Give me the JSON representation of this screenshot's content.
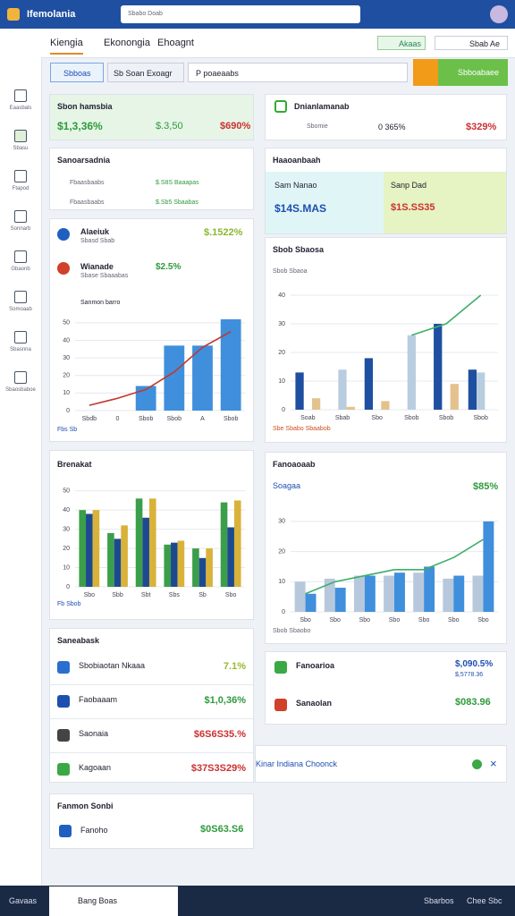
{
  "topbar": {
    "app": "Ifemolania",
    "search": "Sbabo Doab"
  },
  "sidebar": {
    "items": [
      "Eaasbals",
      "Sbasu",
      "Ftapod",
      "Sonnarb",
      "Gbaonb",
      "Somoaab",
      "Sbasnna",
      "Sbaosbaboe"
    ]
  },
  "tabs": [
    "Kiengia",
    "Ekonongia",
    "Ehoagnt"
  ],
  "actions": [
    "Akaas",
    "Sbab Ae"
  ],
  "filters": {
    "active": "Sbboas",
    "secondary": "Sb Soan Exoagr",
    "search": "P poaeaabs",
    "primary": "Sbboabaee"
  },
  "cards": {
    "summary": {
      "title": "Sbon hamsbia",
      "values": [
        "$1,3,36%",
        "$.3,50",
        "$690%"
      ]
    },
    "overview": {
      "title": "Dnianlamanab",
      "label": "Sbomie",
      "values": [
        "0 365%",
        "$329%"
      ]
    },
    "reports": {
      "title": "Sanoarsadnia",
      "rows": [
        [
          "Fbaasbaabs",
          "$.S8S Baaapas"
        ],
        [
          "Fbaasbaabs",
          "$.Sb5 Sbaabas"
        ]
      ]
    },
    "highlights": {
      "title": "Haaoanbaah",
      "left": {
        "label": "Sam Nanao",
        "value": "$14S.MAS"
      },
      "right": {
        "label": "Sanp Dad",
        "value": "$1S.SS35"
      }
    },
    "kpis": [
      {
        "label": "Alaeiuk",
        "sub": "Sbasd Sbab",
        "value": "$.1522%"
      },
      {
        "label": "Wianade",
        "sub": "Sbase Sbaaabas",
        "value": "$2.5%"
      }
    ],
    "lists": {
      "left": {
        "title": "Saneabask",
        "items": [
          [
            "Sbobiaotan Nkaaa",
            "7.1%"
          ],
          [
            "Faobaaam",
            "$1,0,36%"
          ],
          [
            "Saonaia",
            "$6S6S35.%"
          ],
          [
            "Kagoaan",
            "$37S3S29%"
          ]
        ]
      },
      "right": {
        "items": [
          [
            "Fanoarioa",
            "$,090.5%",
            "$,5778.36"
          ],
          [
            "Sanaolan",
            "$083.96"
          ]
        ]
      },
      "bottom": {
        "title": "Fanmon Sonbi",
        "item": "Fanoho",
        "value": "$0S63.S6"
      }
    },
    "toast": "Kinar Indiana Choonck"
  },
  "charts": [
    {
      "type": "bar",
      "title": "Sanmon barro",
      "footer": "Fbs Sb",
      "categories": [
        "Sbdb",
        "0",
        "Sbob",
        "Sbob",
        "A",
        "Sbob"
      ],
      "ylim": [
        0,
        55
      ],
      "yticks": [
        0,
        10,
        20,
        30,
        40,
        50
      ],
      "series": [
        {
          "color": "#3f8fdc",
          "values": [
            null,
            null,
            14,
            37,
            37,
            52
          ]
        },
        {
          "type": "line",
          "color": "#c0392b",
          "values": [
            3,
            7,
            12,
            22,
            36,
            45
          ]
        }
      ]
    },
    {
      "type": "bar",
      "title": "Sbob Sbaoa",
      "header": "Sbob Sbaosa",
      "footer": "Sbe Sbabo Sbaabob",
      "categories": [
        "Soab",
        "Sbab",
        "Sbo",
        "Sbob",
        "Sbob",
        "Sbob"
      ],
      "ylim": [
        0,
        40
      ],
      "yticks": [
        0,
        10,
        20,
        30,
        40
      ],
      "series": [
        {
          "color": "#1f4fa0",
          "values": [
            13,
            null,
            18,
            null,
            30,
            14
          ]
        },
        {
          "color": "#b9cde0",
          "values": [
            null,
            14,
            null,
            26,
            null,
            13
          ]
        },
        {
          "color": "#e3c28e",
          "values": [
            4,
            1,
            3,
            null,
            9,
            null
          ]
        },
        {
          "type": "line",
          "color": "#3fae6a",
          "values": [
            null,
            null,
            null,
            26,
            30,
            40
          ]
        }
      ]
    },
    {
      "type": "bar",
      "title": "Brenakat",
      "footer": "Fb Sbob",
      "categories": [
        "Sbo",
        "Sbb",
        "Sbt",
        "Sbs",
        "Sb",
        "Sbo"
      ],
      "ylim": [
        0,
        55
      ],
      "yticks": [
        0,
        10,
        20,
        30,
        40,
        50
      ],
      "series": [
        {
          "color": "#3b9e4a",
          "values": [
            40,
            28,
            46,
            22,
            20,
            44
          ]
        },
        {
          "color": "#1d4a8f",
          "values": [
            38,
            25,
            36,
            23,
            15,
            31
          ]
        },
        {
          "color": "#d9b23a",
          "values": [
            40,
            32,
            46,
            24,
            20,
            45
          ]
        }
      ]
    },
    {
      "type": "bar",
      "title": "Soagaa",
      "header": "Fanoaoaab",
      "badge": "$85%",
      "footer": "Sbob Sbaobo",
      "categories": [
        "Sbo",
        "Sbo",
        "Sbo",
        "Sbo",
        "Sbo",
        "Sbo",
        "Sbo"
      ],
      "ylim": [
        0,
        35
      ],
      "yticks": [
        0,
        10,
        20,
        30
      ],
      "series": [
        {
          "color": "#b8c8dc",
          "values": [
            10,
            11,
            12,
            12,
            13,
            11,
            12
          ]
        },
        {
          "color": "#3f8fdc",
          "values": [
            6,
            8,
            12,
            13,
            15,
            12,
            30
          ]
        },
        {
          "type": "line",
          "color": "#3fae6a",
          "values": [
            6,
            10,
            12,
            14,
            14,
            18,
            24
          ]
        }
      ]
    }
  ],
  "bottombar": {
    "left": "Gavaas",
    "tab": "Bang Boas",
    "right": [
      "Sbarbos",
      "Chee Sbc"
    ]
  }
}
